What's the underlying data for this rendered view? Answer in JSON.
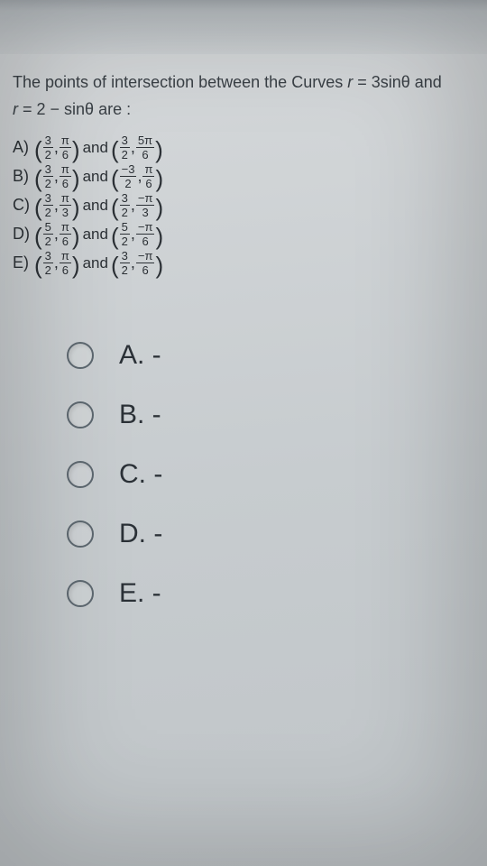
{
  "question": {
    "line1_pre": "The points of intersection between the Curves ",
    "line1_eq_lhs": "r",
    "line1_eq_op": " = ",
    "line1_eq_rhs": "3sinθ",
    "line1_post": " and",
    "line2_pre": "",
    "line2_eq_lhs": "r",
    "line2_eq_op": " = ",
    "line2_eq_rhs": "2 − sinθ",
    "line2_post": "  are :"
  },
  "items": [
    {
      "label": "A)",
      "p1": {
        "n1": "3",
        "d1": "2",
        "n2": "π",
        "d2": "6"
      },
      "p2": {
        "n1": "3",
        "d1": "2",
        "n2": "5π",
        "d2": "6"
      }
    },
    {
      "label": "B)",
      "p1": {
        "n1": "3",
        "d1": "2",
        "n2": "π",
        "d2": "6"
      },
      "p2": {
        "n1": "−3",
        "d1": "2",
        "n2": "π",
        "d2": "6"
      }
    },
    {
      "label": "C)",
      "p1": {
        "n1": "3",
        "d1": "2",
        "n2": "π",
        "d2": "3"
      },
      "p2": {
        "n1": "3",
        "d1": "2",
        "n2": "−π",
        "d2": "3"
      }
    },
    {
      "label": "D)",
      "p1": {
        "n1": "5",
        "d1": "2",
        "n2": "π",
        "d2": "6"
      },
      "p2": {
        "n1": "5",
        "d1": "2",
        "n2": "−π",
        "d2": "6"
      }
    },
    {
      "label": "E)",
      "p1": {
        "n1": "3",
        "d1": "2",
        "n2": "π",
        "d2": "6"
      },
      "p2": {
        "n1": "3",
        "d1": "2",
        "n2": "−π",
        "d2": "6"
      }
    }
  ],
  "andword": "and",
  "comma": ",",
  "choices": [
    {
      "label": "A. -"
    },
    {
      "label": "B. -"
    },
    {
      "label": "C. -"
    },
    {
      "label": "D. -"
    },
    {
      "label": "E. -"
    }
  ],
  "colors": {
    "text": "#2c3136",
    "bg": "#cdd1d4"
  }
}
